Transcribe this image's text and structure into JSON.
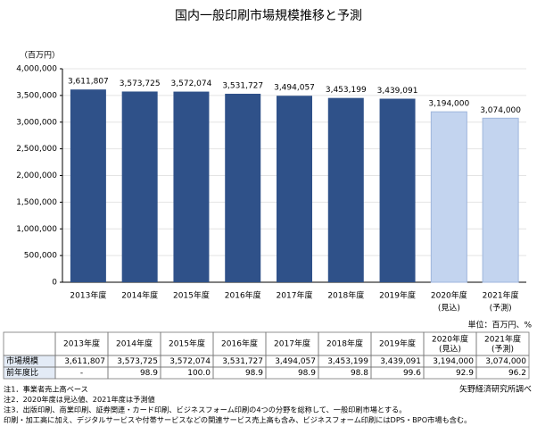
{
  "chart_data": {
    "type": "bar",
    "title": "国内一般印刷市場規模推移と予測",
    "y_unit": "（百万円）",
    "categories": [
      "2013年度",
      "2014年度",
      "2015年度",
      "2016年度",
      "2017年度",
      "2018年度",
      "2019年度",
      "2020年度",
      "2021年度"
    ],
    "category_notes": [
      null,
      null,
      null,
      null,
      null,
      null,
      null,
      "(見込)",
      "(予測)"
    ],
    "values": [
      3611807,
      3573725,
      3572074,
      3531727,
      3494057,
      3453199,
      3439091,
      3194000,
      3074000
    ],
    "value_labels": [
      "3,611,807",
      "3,573,725",
      "3,572,074",
      "3,531,727",
      "3,494,057",
      "3,453,199",
      "3,439,091",
      "3,194,000",
      "3,074,000"
    ],
    "colors": [
      "#2f5189",
      "#2f5189",
      "#2f5189",
      "#2f5189",
      "#2f5189",
      "#2f5189",
      "#2f5189",
      "#c3d4ef",
      "#c3d4ef"
    ],
    "ylim": [
      0,
      4000000
    ],
    "yticks": [
      {
        "value": 0,
        "label": "0"
      },
      {
        "value": 500000,
        "label": "500,000"
      },
      {
        "value": 1000000,
        "label": "1,000,000"
      },
      {
        "value": 1500000,
        "label": "1,500,000"
      },
      {
        "value": 2000000,
        "label": "2,000,000"
      },
      {
        "value": 2500000,
        "label": "2,500,000"
      },
      {
        "value": 3000000,
        "label": "3,000,000"
      },
      {
        "value": 3500000,
        "label": "3,500,000"
      },
      {
        "value": 4000000,
        "label": "4,000,000"
      }
    ],
    "grid": true
  },
  "table": {
    "unit": "単位：百万円、%",
    "header": [
      "2013年度",
      "2014年度",
      "2015年度",
      "2016年度",
      "2017年度",
      "2018年度",
      "2019年度",
      "2020年度",
      "2021年度"
    ],
    "header_notes": [
      null,
      null,
      null,
      null,
      null,
      null,
      null,
      "(見込)",
      "(予測)"
    ],
    "rows": [
      {
        "label": "市場規模",
        "cells": [
          "3,611,807",
          "3,573,725",
          "3,572,074",
          "3,531,727",
          "3,494,057",
          "3,453,199",
          "3,439,091",
          "3,194,000",
          "3,074,000"
        ]
      },
      {
        "label": "前年度比",
        "cells": [
          "-",
          "98.9",
          "100.0",
          "98.9",
          "98.9",
          "98.8",
          "99.6",
          "92.9",
          "96.2"
        ]
      }
    ]
  },
  "notes": [
    "注1．事業者売上高ベース",
    "注2．2020年度は見込値、2021年度は予測値",
    "注3．出版印刷、商業印刷、証券関連・カード印刷、ビジネスフォーム印刷の4つの分野を総称して、一般印刷市場とする。",
    "印刷・加工高に加え、デジタルサービスや付帯サービスなどの関連サービス売上高も含み、ビジネスフォーム印刷にはDPS・BPO市場も含む。"
  ],
  "source": "矢野経済研究所調べ"
}
